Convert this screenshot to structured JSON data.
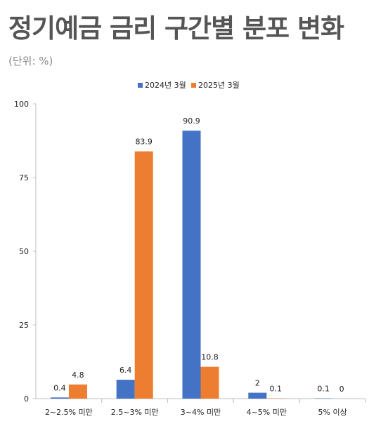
{
  "title": "정기예금 금리 구간별 분포 변화",
  "unit": "(단위: %)",
  "colors": {
    "series1": "#4472C4",
    "series2": "#ED7D31",
    "axis": "#bfbfbf",
    "text": "#222222"
  },
  "chart_data": {
    "type": "bar",
    "categories": [
      "2~2.5% 미만",
      "2.5~3% 미만",
      "3~4% 미만",
      "4~5% 미만",
      "5% 이상"
    ],
    "series": [
      {
        "name": "2024년 3월",
        "values": [
          0.4,
          6.4,
          90.9,
          2,
          0.1
        ],
        "labels": [
          "0.4",
          "6.4",
          "90.9",
          "2",
          "0.1"
        ]
      },
      {
        "name": "2025년 3월",
        "values": [
          4.8,
          83.9,
          10.8,
          0.1,
          0
        ],
        "labels": [
          "4.8",
          "83.9",
          "10.8",
          "0.1",
          "0"
        ]
      }
    ],
    "yticks": [
      0,
      25,
      50,
      75,
      100
    ],
    "ylim": [
      0,
      100
    ],
    "grid": false,
    "legend": "top-center"
  }
}
